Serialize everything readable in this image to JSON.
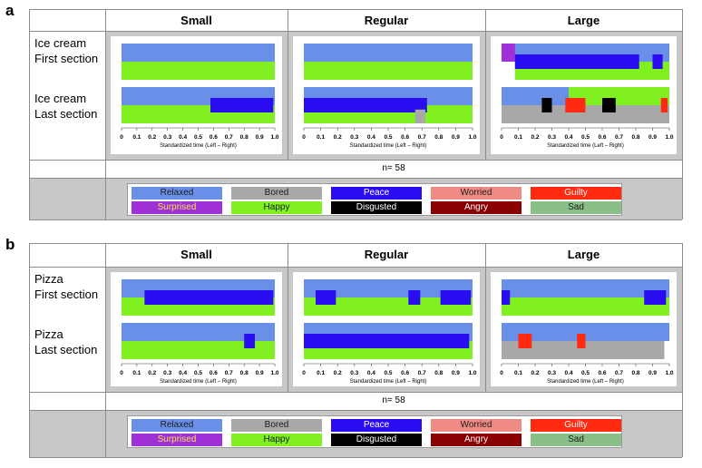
{
  "panels": [
    {
      "letter": "a",
      "headers": [
        "Small",
        "Regular",
        "Large"
      ],
      "row_labels": [
        [
          "Ice cream",
          "First section"
        ],
        [
          "Ice cream",
          "Last section"
        ]
      ],
      "n_label": "n= 58",
      "xlabel": "Standardized time (Left – Right)",
      "xticks": [
        "0",
        "0.1",
        "0.2",
        "0.3",
        "0.4",
        "0.5",
        "0.6",
        "0.7",
        "0.8",
        "0.9",
        "1.0"
      ]
    },
    {
      "letter": "b",
      "headers": [
        "Small",
        "Regular",
        "Large"
      ],
      "row_labels": [
        [
          "Pizza",
          "First section"
        ],
        [
          "Pizza",
          "Last section"
        ]
      ],
      "n_label": "n= 58",
      "xlabel": "Standardized time (Left – Right)",
      "xticks": [
        "0",
        "0.1",
        "0.2",
        "0.3",
        "0.4",
        "0.5",
        "0.6",
        "0.7",
        "0.8",
        "0.9",
        "1.0"
      ]
    }
  ],
  "legend": [
    {
      "label": "Relaxed",
      "color": "#6a8fe8",
      "text_color": "#1c1c1c"
    },
    {
      "label": "Bored",
      "color": "#a8a8a8",
      "text_color": "#1c1c1c"
    },
    {
      "label": "Peace",
      "color": "#2a0cf0",
      "text_color": "#ffffff"
    },
    {
      "label": "Worried",
      "color": "#f08a84",
      "text_color": "#1c1c1c"
    },
    {
      "label": "Guilty",
      "color": "#ff2a10",
      "text_color": "#ffffff"
    },
    {
      "label": "Surprised",
      "color": "#a030d8",
      "text_color": "#f4e040"
    },
    {
      "label": "Happy",
      "color": "#80f020",
      "text_color": "#1c1c1c"
    },
    {
      "label": "Disgusted",
      "color": "#000000",
      "text_color": "#ffffff"
    },
    {
      "label": "Angry",
      "color": "#8a0000",
      "text_color": "#ffffff"
    },
    {
      "label": "Sad",
      "color": "#88c088",
      "text_color": "#1c1c1c"
    }
  ],
  "chart_data": {
    "type": "area",
    "xlabel": "Standardized time (Left – Right)",
    "xlim": [
      0,
      1
    ],
    "note": "Temporal dominance of emotions; each bar is dominant emotion over standardized time",
    "charts": [
      {
        "panel": "a",
        "size": "Small",
        "section": "First section",
        "segments": [
          {
            "emotion": "Relaxed",
            "band": "top",
            "x": [
              0,
              1
            ]
          },
          {
            "emotion": "Happy",
            "band": "bottom",
            "x": [
              0,
              1
            ]
          }
        ]
      },
      {
        "panel": "a",
        "size": "Small",
        "section": "Last section",
        "segments": [
          {
            "emotion": "Relaxed",
            "band": "top",
            "x": [
              0,
              1
            ]
          },
          {
            "emotion": "Happy",
            "band": "bottom",
            "x": [
              0,
              1
            ]
          },
          {
            "emotion": "Peace",
            "band": "mid",
            "x": [
              0.58,
              0.99
            ]
          }
        ]
      },
      {
        "panel": "a",
        "size": "Regular",
        "section": "First section",
        "segments": [
          {
            "emotion": "Relaxed",
            "band": "top",
            "x": [
              0,
              1
            ]
          },
          {
            "emotion": "Happy",
            "band": "bottom",
            "x": [
              0,
              1
            ]
          }
        ]
      },
      {
        "panel": "a",
        "size": "Regular",
        "section": "Last section",
        "segments": [
          {
            "emotion": "Relaxed",
            "band": "top",
            "x": [
              0,
              1
            ]
          },
          {
            "emotion": "Happy",
            "band": "bottom",
            "x": [
              0,
              1
            ]
          },
          {
            "emotion": "Peace",
            "band": "mid",
            "x": [
              0.0,
              0.73
            ]
          },
          {
            "emotion": "Bored",
            "band": "low",
            "x": [
              0.66,
              0.72
            ]
          }
        ]
      },
      {
        "panel": "a",
        "size": "Large",
        "section": "First section",
        "segments": [
          {
            "emotion": "Relaxed",
            "band": "top",
            "x": [
              0,
              1
            ]
          },
          {
            "emotion": "Happy",
            "band": "bottom",
            "x": [
              0.08,
              1
            ]
          },
          {
            "emotion": "Surprised",
            "band": "top",
            "x": [
              0.0,
              0.08
            ]
          },
          {
            "emotion": "Peace",
            "band": "mid",
            "x": [
              0.08,
              0.82
            ]
          },
          {
            "emotion": "Peace",
            "band": "mid",
            "x": [
              0.9,
              0.96
            ]
          }
        ]
      },
      {
        "panel": "a",
        "size": "Large",
        "section": "Last section",
        "segments": [
          {
            "emotion": "Relaxed",
            "band": "top",
            "x": [
              0,
              0.4
            ]
          },
          {
            "emotion": "Happy",
            "band": "top",
            "x": [
              0.4,
              1
            ]
          },
          {
            "emotion": "Bored",
            "band": "bottom",
            "x": [
              0,
              1
            ]
          },
          {
            "emotion": "Disgusted",
            "band": "mid",
            "x": [
              0.24,
              0.3
            ]
          },
          {
            "emotion": "Guilty",
            "band": "mid",
            "x": [
              0.38,
              0.5
            ]
          },
          {
            "emotion": "Disgusted",
            "band": "mid",
            "x": [
              0.6,
              0.68
            ]
          },
          {
            "emotion": "Guilty",
            "band": "mid",
            "x": [
              0.95,
              0.99
            ]
          }
        ]
      },
      {
        "panel": "b",
        "size": "Small",
        "section": "First section",
        "segments": [
          {
            "emotion": "Relaxed",
            "band": "top",
            "x": [
              0,
              1
            ]
          },
          {
            "emotion": "Happy",
            "band": "bottom",
            "x": [
              0,
              1
            ]
          },
          {
            "emotion": "Peace",
            "band": "mid",
            "x": [
              0.15,
              0.99
            ]
          }
        ]
      },
      {
        "panel": "b",
        "size": "Small",
        "section": "Last section",
        "segments": [
          {
            "emotion": "Relaxed",
            "band": "top",
            "x": [
              0,
              1
            ]
          },
          {
            "emotion": "Happy",
            "band": "bottom",
            "x": [
              0,
              1
            ]
          },
          {
            "emotion": "Peace",
            "band": "mid",
            "x": [
              0.8,
              0.87
            ]
          }
        ]
      },
      {
        "panel": "b",
        "size": "Regular",
        "section": "First section",
        "segments": [
          {
            "emotion": "Relaxed",
            "band": "top",
            "x": [
              0,
              1
            ]
          },
          {
            "emotion": "Happy",
            "band": "bottom",
            "x": [
              0,
              1
            ]
          },
          {
            "emotion": "Peace",
            "band": "mid",
            "x": [
              0.07,
              0.19
            ]
          },
          {
            "emotion": "Peace",
            "band": "mid",
            "x": [
              0.62,
              0.69
            ]
          },
          {
            "emotion": "Peace",
            "band": "mid",
            "x": [
              0.81,
              0.99
            ]
          }
        ]
      },
      {
        "panel": "b",
        "size": "Regular",
        "section": "Last section",
        "segments": [
          {
            "emotion": "Relaxed",
            "band": "top",
            "x": [
              0,
              1
            ]
          },
          {
            "emotion": "Happy",
            "band": "bottom",
            "x": [
              0,
              1
            ]
          },
          {
            "emotion": "Peace",
            "band": "mid",
            "x": [
              0.0,
              0.98
            ]
          }
        ]
      },
      {
        "panel": "b",
        "size": "Large",
        "section": "First section",
        "segments": [
          {
            "emotion": "Relaxed",
            "band": "top",
            "x": [
              0,
              1
            ]
          },
          {
            "emotion": "Happy",
            "band": "bottom",
            "x": [
              0,
              1
            ]
          },
          {
            "emotion": "Peace",
            "band": "mid",
            "x": [
              0.0,
              0.05
            ]
          },
          {
            "emotion": "Peace",
            "band": "mid",
            "x": [
              0.85,
              0.98
            ]
          }
        ]
      },
      {
        "panel": "b",
        "size": "Large",
        "section": "Last section",
        "segments": [
          {
            "emotion": "Relaxed",
            "band": "top",
            "x": [
              0,
              1
            ]
          },
          {
            "emotion": "Bored",
            "band": "bottom",
            "x": [
              0,
              0.97
            ]
          },
          {
            "emotion": "Guilty",
            "band": "mid",
            "x": [
              0.1,
              0.18
            ]
          },
          {
            "emotion": "Guilty",
            "band": "mid",
            "x": [
              0.45,
              0.5
            ]
          }
        ]
      }
    ]
  }
}
